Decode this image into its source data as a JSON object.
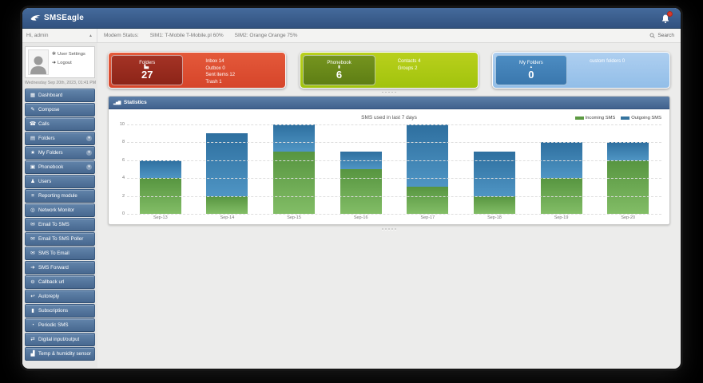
{
  "window": {
    "title": "SMSEagle"
  },
  "topbar": {
    "greeting": "Hi, admin",
    "modem_label": "Modem Status:",
    "sim1_status": "SIM1: T-Mobile T-Mobile.pl 60%",
    "sim2_status": "SIM2: Orange Orange 75%",
    "search_label": "Search"
  },
  "sidebar": {
    "user_settings_label": "User Settings",
    "logout_label": "Logout",
    "date": "Wednesday Sep 20th, 2023, 01:41 PM",
    "items": [
      {
        "id": "dashboard",
        "label": "Dashboard",
        "icon": "dashboard-icon",
        "glyph": "▦",
        "expandable": false
      },
      {
        "id": "compose",
        "label": "Compose",
        "icon": "compose-icon",
        "glyph": "✎",
        "expandable": false
      },
      {
        "id": "calls",
        "label": "Calls",
        "icon": "phone-icon",
        "glyph": "☎",
        "expandable": false
      },
      {
        "id": "folders",
        "label": "Folders",
        "icon": "folder-icon",
        "glyph": "▤",
        "expandable": true
      },
      {
        "id": "my-folders",
        "label": "My Folders",
        "icon": "star-icon",
        "glyph": "★",
        "expandable": true
      },
      {
        "id": "phonebook",
        "label": "Phonebook",
        "icon": "phonebook-icon",
        "glyph": "▣",
        "expandable": true
      },
      {
        "id": "users",
        "label": "Users",
        "icon": "users-icon",
        "glyph": "♟",
        "expandable": false
      },
      {
        "id": "reporting-module",
        "label": "Reporting module",
        "icon": "report-list-icon",
        "glyph": "≡",
        "expandable": false
      },
      {
        "id": "network-monitor",
        "label": "Network Monitor",
        "icon": "network-monitor-icon",
        "glyph": "◎",
        "expandable": false
      },
      {
        "id": "email-to-sms",
        "label": "Email To SMS",
        "icon": "envelope-icon",
        "glyph": "✉",
        "expandable": false
      },
      {
        "id": "email-to-sms-poller",
        "label": "Email To SMS Poller",
        "icon": "envelope-icon",
        "glyph": "✉",
        "expandable": false
      },
      {
        "id": "sms-to-email",
        "label": "SMS To Email",
        "icon": "envelope-icon",
        "glyph": "✉",
        "expandable": false
      },
      {
        "id": "sms-forward",
        "label": "SMS Forward",
        "icon": "forward-arrow-icon",
        "glyph": "➔",
        "expandable": false
      },
      {
        "id": "callback-url",
        "label": "Callback url",
        "icon": "callback-icon",
        "glyph": "⊖",
        "expandable": false
      },
      {
        "id": "autoreply",
        "label": "Autoreply",
        "icon": "reply-icon",
        "glyph": "↩",
        "expandable": false
      },
      {
        "id": "subscriptions",
        "label": "Subscriptions",
        "icon": "subscriptions-icon",
        "glyph": "▮",
        "expandable": false
      },
      {
        "id": "periodic-sms",
        "label": "Periodic SMS",
        "icon": "clock-icon",
        "glyph": "◔",
        "expandable": false
      },
      {
        "id": "digital-input-output",
        "label": "Digital input/output",
        "icon": "input-output-icon",
        "glyph": "⇄",
        "expandable": false
      },
      {
        "id": "temp-humidity-sensor",
        "label": "Temp & humidity sensor",
        "icon": "sensor-chart-icon",
        "glyph": "▟",
        "expandable": false
      }
    ]
  },
  "cards": [
    {
      "id": "folders",
      "title": "Folders",
      "count": "27",
      "details": [
        "Inbox 14",
        "Outbox 0",
        "Sent items 12",
        "Trash 1"
      ],
      "color_dark": "#9a2c1f",
      "color_light": "#dd4f32"
    },
    {
      "id": "phonebook",
      "title": "Phonebook",
      "count": "6",
      "details": [
        "Contacts 4",
        "Groups 2"
      ],
      "color_dark": "#6a891a",
      "color_light": "#adc914"
    },
    {
      "id": "my-folders",
      "title": "My Folders",
      "count": "0",
      "details": [
        "custom folders 0"
      ],
      "color_dark": "#4282b8",
      "color_light": "#a0c6ec"
    }
  ],
  "statistics": {
    "panel_title": "Statistics"
  },
  "chart_data": {
    "type": "bar",
    "stacked": true,
    "title": "SMS used in last 7 days",
    "categories": [
      "Sep-13",
      "Sep-14",
      "Sep-15",
      "Sep-16",
      "Sep-17",
      "Sep-18",
      "Sep-19",
      "Sep-20"
    ],
    "series": [
      {
        "name": "Incoming SMS",
        "color": "#5c9a42",
        "values": [
          4,
          2,
          7,
          5,
          3,
          2,
          4,
          6
        ]
      },
      {
        "name": "Outgoing SMS",
        "color": "#35749f",
        "values": [
          2,
          7,
          3,
          2,
          7,
          5,
          4,
          2
        ]
      }
    ],
    "ylim": [
      0,
      10
    ],
    "yticks": [
      0,
      2,
      4,
      6,
      8,
      10
    ],
    "grid": true,
    "legend_position": "top-right"
  }
}
